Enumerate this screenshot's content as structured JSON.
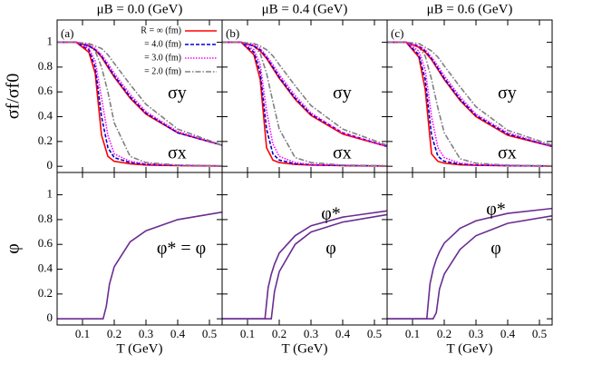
{
  "chart_data": [
    {
      "type": "line",
      "title": "μB = 0.0 (GeV)",
      "ylabel": "σf/σf0",
      "annotations": [
        "(a)",
        "σy",
        "σx"
      ],
      "xlim": [
        0.02,
        0.54
      ],
      "ylim": [
        -0.05,
        1.18
      ],
      "yticks": [
        0,
        0.2,
        0.4,
        0.6,
        0.8,
        1
      ],
      "x": [
        0.02,
        0.08,
        0.12,
        0.14,
        0.16,
        0.18,
        0.2,
        0.25,
        0.3,
        0.4,
        0.54
      ],
      "series": [
        {
          "name": "R = ∞  (fm)",
          "color": "#ff0000",
          "style": "solid",
          "values": [
            1,
            1,
            0.92,
            0.75,
            0.25,
            0.08,
            0.04,
            0.02,
            0.01,
            0.005,
            0.002
          ]
        },
        {
          "name": "= 4.0 (fm)",
          "color": "#0000cc",
          "style": "dashed",
          "values": [
            1,
            1,
            0.94,
            0.8,
            0.4,
            0.15,
            0.07,
            0.03,
            0.015,
            0.007,
            0.003
          ]
        },
        {
          "name": "= 3.0 (fm)",
          "color": "#ff00ff",
          "style": "dotted",
          "values": [
            1,
            1,
            0.95,
            0.85,
            0.55,
            0.25,
            0.1,
            0.04,
            0.02,
            0.008,
            0.003
          ]
        },
        {
          "name": "= 2.0 (fm)",
          "color": "#808080",
          "style": "dashdot",
          "values": [
            1,
            1,
            0.98,
            0.93,
            0.8,
            0.6,
            0.35,
            0.08,
            0.03,
            0.01,
            0.004
          ]
        },
        {
          "color": "#ff0000",
          "style": "solid",
          "values": [
            1,
            1,
            0.97,
            0.94,
            0.88,
            0.8,
            0.72,
            0.55,
            0.42,
            0.27,
            0.17
          ]
        },
        {
          "color": "#0000cc",
          "style": "dashed",
          "values": [
            1,
            1,
            0.97,
            0.94,
            0.89,
            0.81,
            0.73,
            0.56,
            0.43,
            0.27,
            0.17
          ]
        },
        {
          "color": "#ff00ff",
          "style": "dotted",
          "values": [
            1,
            1,
            0.98,
            0.95,
            0.9,
            0.83,
            0.75,
            0.58,
            0.44,
            0.28,
            0.17
          ]
        },
        {
          "color": "#808080",
          "style": "dashdot",
          "values": [
            1,
            1,
            0.99,
            0.97,
            0.95,
            0.9,
            0.83,
            0.66,
            0.5,
            0.3,
            0.17
          ]
        }
      ]
    },
    {
      "type": "line",
      "title": "μB = 0.4 (GeV)",
      "annotations": [
        "(b)",
        "σy",
        "σx"
      ],
      "xlim": [
        0.02,
        0.54
      ],
      "ylim": [
        -0.05,
        1.18
      ],
      "x": [
        0.02,
        0.08,
        0.12,
        0.14,
        0.16,
        0.18,
        0.2,
        0.25,
        0.3,
        0.4,
        0.54
      ],
      "series": [
        {
          "color": "#ff0000",
          "style": "solid",
          "values": [
            1,
            1,
            0.9,
            0.7,
            0.15,
            0.05,
            0.03,
            0.015,
            0.01,
            0.005,
            0.002
          ]
        },
        {
          "color": "#0000cc",
          "style": "dashed",
          "values": [
            1,
            1,
            0.92,
            0.76,
            0.3,
            0.1,
            0.05,
            0.02,
            0.012,
            0.006,
            0.003
          ]
        },
        {
          "color": "#ff00ff",
          "style": "dotted",
          "values": [
            1,
            1,
            0.94,
            0.82,
            0.45,
            0.18,
            0.08,
            0.03,
            0.015,
            0.007,
            0.003
          ]
        },
        {
          "color": "#808080",
          "style": "dashdot",
          "values": [
            1,
            1,
            0.97,
            0.91,
            0.75,
            0.52,
            0.3,
            0.07,
            0.03,
            0.01,
            0.004
          ]
        },
        {
          "color": "#ff0000",
          "style": "solid",
          "values": [
            1,
            1,
            0.97,
            0.93,
            0.87,
            0.79,
            0.71,
            0.54,
            0.41,
            0.26,
            0.16
          ]
        },
        {
          "color": "#0000cc",
          "style": "dashed",
          "values": [
            1,
            1,
            0.97,
            0.94,
            0.88,
            0.8,
            0.72,
            0.55,
            0.42,
            0.27,
            0.16
          ]
        },
        {
          "color": "#ff00ff",
          "style": "dotted",
          "values": [
            1,
            1,
            0.98,
            0.95,
            0.89,
            0.82,
            0.74,
            0.57,
            0.43,
            0.27,
            0.16
          ]
        },
        {
          "color": "#808080",
          "style": "dashdot",
          "values": [
            1,
            1,
            0.99,
            0.97,
            0.94,
            0.89,
            0.82,
            0.65,
            0.49,
            0.3,
            0.17
          ]
        }
      ]
    },
    {
      "type": "line",
      "title": "μB = 0.6 (GeV)",
      "annotations": [
        "(c)",
        "σy",
        "σx"
      ],
      "xlim": [
        0.02,
        0.54
      ],
      "ylim": [
        -0.05,
        1.18
      ],
      "x": [
        0.02,
        0.08,
        0.12,
        0.14,
        0.16,
        0.18,
        0.2,
        0.25,
        0.3,
        0.4,
        0.54
      ],
      "series": [
        {
          "color": "#ff0000",
          "style": "solid",
          "values": [
            1,
            1,
            0.88,
            0.62,
            0.1,
            0.04,
            0.025,
            0.012,
            0.008,
            0.004,
            0.002
          ]
        },
        {
          "color": "#0000cc",
          "style": "dashed",
          "values": [
            1,
            1,
            0.9,
            0.7,
            0.25,
            0.08,
            0.04,
            0.018,
            0.01,
            0.005,
            0.002
          ]
        },
        {
          "color": "#ff00ff",
          "style": "dotted",
          "values": [
            1,
            1,
            0.93,
            0.78,
            0.4,
            0.15,
            0.07,
            0.025,
            0.013,
            0.006,
            0.003
          ]
        },
        {
          "color": "#808080",
          "style": "dashdot",
          "values": [
            1,
            1,
            0.96,
            0.89,
            0.7,
            0.47,
            0.27,
            0.06,
            0.025,
            0.009,
            0.004
          ]
        },
        {
          "color": "#ff0000",
          "style": "solid",
          "values": [
            1,
            1,
            0.96,
            0.92,
            0.86,
            0.78,
            0.7,
            0.53,
            0.4,
            0.25,
            0.16
          ]
        },
        {
          "color": "#0000cc",
          "style": "dashed",
          "values": [
            1,
            1,
            0.97,
            0.93,
            0.87,
            0.79,
            0.71,
            0.54,
            0.41,
            0.26,
            0.16
          ]
        },
        {
          "color": "#ff00ff",
          "style": "dotted",
          "values": [
            1,
            1,
            0.97,
            0.94,
            0.88,
            0.81,
            0.73,
            0.56,
            0.42,
            0.27,
            0.16
          ]
        },
        {
          "color": "#808080",
          "style": "dashdot",
          "values": [
            1,
            1,
            0.99,
            0.96,
            0.93,
            0.88,
            0.81,
            0.64,
            0.48,
            0.29,
            0.17
          ]
        }
      ]
    },
    {
      "type": "line",
      "xlabel": "T (GeV)",
      "ylabel": "φ",
      "annotations": [
        "φ* = φ"
      ],
      "xlim": [
        0.02,
        0.54
      ],
      "ylim": [
        -0.05,
        1.18
      ],
      "xticks": [
        0.1,
        0.2,
        0.3,
        0.4,
        0.5
      ],
      "yticks": [
        0,
        0.2,
        0.4,
        0.6,
        0.8,
        1
      ],
      "x": [
        0.02,
        0.145,
        0.155,
        0.165,
        0.175,
        0.185,
        0.2,
        0.25,
        0.3,
        0.4,
        0.54
      ],
      "series": [
        {
          "color": "#6a2c91",
          "style": "solid",
          "values": [
            0,
            0,
            0,
            0,
            0.1,
            0.28,
            0.42,
            0.62,
            0.71,
            0.8,
            0.86
          ]
        }
      ]
    },
    {
      "type": "line",
      "xlabel": "T (GeV)",
      "annotations": [
        "φ*",
        "φ"
      ],
      "xlim": [
        0.02,
        0.54
      ],
      "ylim": [
        -0.05,
        1.18
      ],
      "xticks": [
        0.1,
        0.2,
        0.3,
        0.4,
        0.5
      ],
      "x": [
        0.02,
        0.145,
        0.155,
        0.165,
        0.175,
        0.185,
        0.2,
        0.25,
        0.3,
        0.4,
        0.54
      ],
      "series": [
        {
          "color": "#6a2c91",
          "style": "solid",
          "values": [
            0,
            0,
            0,
            0.25,
            0.36,
            0.44,
            0.53,
            0.67,
            0.75,
            0.82,
            0.87
          ]
        },
        {
          "color": "#6a2c91",
          "style": "solid",
          "values": [
            0,
            0,
            0,
            0,
            0,
            0.22,
            0.38,
            0.6,
            0.7,
            0.78,
            0.84
          ]
        }
      ]
    },
    {
      "type": "line",
      "xlabel": "T (GeV)",
      "annotations": [
        "φ*",
        "φ"
      ],
      "xlim": [
        0.02,
        0.54
      ],
      "ylim": [
        -0.05,
        1.18
      ],
      "xticks": [
        0.1,
        0.2,
        0.3,
        0.4,
        0.5
      ],
      "x": [
        0.02,
        0.145,
        0.155,
        0.165,
        0.175,
        0.185,
        0.2,
        0.25,
        0.3,
        0.4,
        0.54
      ],
      "series": [
        {
          "color": "#6a2c91",
          "style": "solid",
          "values": [
            0,
            0,
            0.28,
            0.4,
            0.48,
            0.54,
            0.61,
            0.73,
            0.79,
            0.85,
            0.89
          ]
        },
        {
          "color": "#6a2c91",
          "style": "solid",
          "values": [
            0,
            0,
            0,
            0,
            0.05,
            0.24,
            0.36,
            0.56,
            0.67,
            0.77,
            0.83
          ]
        }
      ]
    }
  ]
}
